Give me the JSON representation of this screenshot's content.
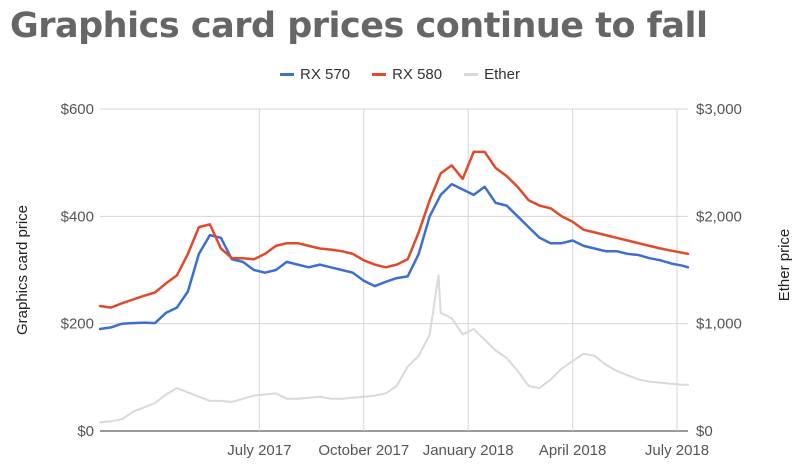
{
  "chart_data": {
    "type": "line",
    "title": "Graphics card prices continue to fall",
    "ylabel": "Graphics card price",
    "y2label": "Ether price",
    "ylim": [
      0,
      600
    ],
    "y2lim": [
      0,
      3000
    ],
    "yticks": [
      "$0",
      "$200",
      "$400",
      "$600"
    ],
    "y2ticks": [
      "$0",
      "$1,000",
      "$2,000",
      "$3,000"
    ],
    "xticks": [
      {
        "label": "July 2017",
        "x": 14.5
      },
      {
        "label": "October 2017",
        "x": 24
      },
      {
        "label": "January 2018",
        "x": 33.5
      },
      {
        "label": "April 2018",
        "x": 43
      },
      {
        "label": "July 2018",
        "x": 52.5
      }
    ],
    "xlim": [
      0,
      53.5
    ],
    "grid": true,
    "legend_position": "top",
    "series": [
      {
        "name": "RX 570",
        "axis": "left",
        "color": "#3c6fd1",
        "x": [
          0,
          1,
          2,
          3,
          4,
          5,
          6,
          7,
          8,
          9,
          10,
          11,
          12,
          13,
          14,
          15,
          16,
          17,
          18,
          19,
          20,
          21,
          22,
          23,
          24,
          25,
          26,
          27,
          28,
          29,
          30,
          31,
          32,
          33,
          34,
          35,
          36,
          37,
          38,
          39,
          40,
          41,
          42,
          43,
          44,
          45,
          46,
          47,
          48,
          49,
          50,
          51,
          52,
          53,
          53.5
        ],
        "values": [
          190,
          193,
          200,
          201,
          202,
          201,
          220,
          230,
          260,
          330,
          365,
          360,
          320,
          315,
          300,
          295,
          300,
          315,
          310,
          305,
          310,
          305,
          300,
          295,
          280,
          270,
          278,
          285,
          288,
          330,
          400,
          440,
          460,
          450,
          440,
          455,
          425,
          420,
          400,
          380,
          360,
          350,
          350,
          355,
          345,
          340,
          335,
          335,
          330,
          328,
          322,
          318,
          312,
          308,
          305
        ]
      },
      {
        "name": "RX 580",
        "axis": "left",
        "color": "#e04a2a",
        "x": [
          0,
          1,
          2,
          3,
          4,
          5,
          6,
          7,
          8,
          9,
          10,
          11,
          12,
          13,
          14,
          15,
          16,
          17,
          18,
          19,
          20,
          21,
          22,
          23,
          24,
          25,
          26,
          27,
          28,
          29,
          30,
          31,
          32,
          33,
          34,
          35,
          36,
          37,
          38,
          39,
          40,
          41,
          42,
          43,
          44,
          45,
          46,
          47,
          48,
          49,
          50,
          51,
          52,
          53,
          53.5
        ],
        "values": [
          233,
          230,
          238,
          245,
          252,
          258,
          275,
          290,
          330,
          380,
          385,
          340,
          322,
          322,
          320,
          330,
          345,
          350,
          350,
          345,
          340,
          338,
          335,
          330,
          318,
          310,
          305,
          310,
          320,
          370,
          430,
          480,
          495,
          470,
          520,
          520,
          490,
          475,
          455,
          430,
          420,
          415,
          400,
          390,
          375,
          370,
          365,
          360,
          355,
          350,
          345,
          340,
          336,
          332,
          330
        ]
      },
      {
        "name": "Ether",
        "axis": "right",
        "color": "#d9d9d9",
        "x": [
          0,
          1,
          2,
          3,
          4,
          5,
          6,
          7,
          8,
          9,
          10,
          11,
          12,
          13,
          14,
          15,
          16,
          17,
          18,
          19,
          20,
          21,
          22,
          23,
          24,
          25,
          26,
          27,
          28,
          29,
          30,
          30.8,
          31,
          32,
          33,
          34,
          35,
          36,
          37,
          38,
          39,
          40,
          41,
          42,
          43,
          44,
          45,
          46,
          47,
          48,
          49,
          50,
          51,
          52,
          53,
          53.5
        ],
        "values": [
          80,
          90,
          110,
          180,
          220,
          260,
          340,
          400,
          360,
          320,
          280,
          280,
          270,
          300,
          330,
          340,
          350,
          300,
          300,
          310,
          320,
          300,
          300,
          310,
          320,
          330,
          350,
          420,
          600,
          700,
          900,
          1450,
          1100,
          1050,
          900,
          950,
          850,
          750,
          680,
          560,
          420,
          400,
          480,
          580,
          650,
          720,
          700,
          620,
          560,
          520,
          480,
          460,
          450,
          440,
          430,
          430
        ]
      }
    ]
  }
}
